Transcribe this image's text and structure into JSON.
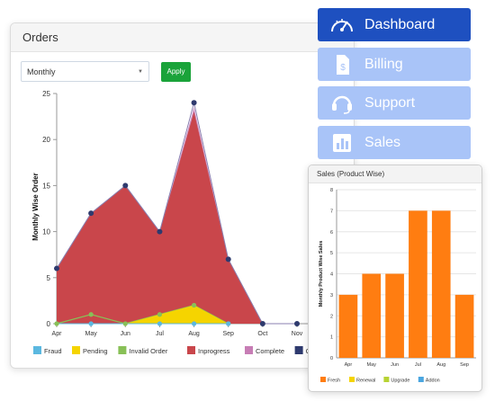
{
  "orders": {
    "title": "Orders",
    "period_value": "Monthly",
    "apply_label": "Apply"
  },
  "menu": [
    {
      "label": "Dashboard",
      "icon": "speedometer-icon",
      "active": true
    },
    {
      "label": "Billing",
      "icon": "invoice-icon",
      "active": false
    },
    {
      "label": "Support",
      "icon": "headset-icon",
      "active": false
    },
    {
      "label": "Sales",
      "icon": "bar-chart-icon",
      "active": false
    }
  ],
  "sales": {
    "title": "Sales (Product Wise)"
  },
  "chart_data": [
    {
      "type": "area",
      "ylabel": "Monthly Wise Order",
      "xlabel": "",
      "categories": [
        "Apr",
        "May",
        "Jun",
        "Jul",
        "Aug",
        "Sep",
        "Oct",
        "Nov"
      ],
      "yticks": [
        0,
        5,
        10,
        15,
        20,
        25
      ],
      "ylim": [
        0,
        25
      ],
      "grid": false,
      "legend_position": "bottom",
      "series": [
        {
          "name": "Fraud",
          "color": "#5bb8e0",
          "values": [
            0,
            0,
            0,
            0,
            0,
            0,
            null,
            null
          ]
        },
        {
          "name": "Pending",
          "color": "#f5d400",
          "values": [
            0,
            0,
            0,
            1,
            2,
            0,
            null,
            null
          ]
        },
        {
          "name": "Invalid Order",
          "color": "#88c057",
          "values": [
            0,
            1,
            0,
            1,
            2,
            0,
            null,
            null
          ]
        },
        {
          "name": "Inprogress",
          "color": "#c9464b",
          "values": [
            6,
            12,
            15,
            10,
            23,
            7,
            0,
            null
          ]
        },
        {
          "name": "Complete",
          "color": "#c77db5",
          "values": [
            6,
            12,
            15,
            10,
            23.5,
            7,
            0,
            null
          ]
        },
        {
          "name": "Cancelled",
          "color": "#2e3a6e",
          "values": [
            6,
            12,
            15,
            10,
            24,
            7,
            0,
            0
          ]
        }
      ]
    },
    {
      "type": "bar",
      "ylabel": "Monthly Product Wise Sales",
      "xlabel": "",
      "categories": [
        "Apr",
        "May",
        "Jun",
        "Jul",
        "Aug",
        "Sep"
      ],
      "yticks": [
        0,
        1,
        2,
        3,
        4,
        5,
        6,
        7,
        8
      ],
      "ylim": [
        0,
        8
      ],
      "grid": true,
      "legend_position": "bottom",
      "series": [
        {
          "name": "Fresh",
          "color": "#ff7d11",
          "values": [
            3,
            4,
            4,
            7,
            7,
            3
          ]
        },
        {
          "name": "Renewal",
          "color": "#f5d400",
          "values": [
            0,
            0,
            0,
            0,
            0,
            0
          ]
        },
        {
          "name": "Upgrade",
          "color": "#b7d333",
          "values": [
            0,
            0,
            0,
            0,
            0,
            0
          ]
        },
        {
          "name": "Addon",
          "color": "#4aa6e0",
          "values": [
            0,
            0,
            0,
            0,
            0,
            0
          ]
        }
      ]
    }
  ]
}
